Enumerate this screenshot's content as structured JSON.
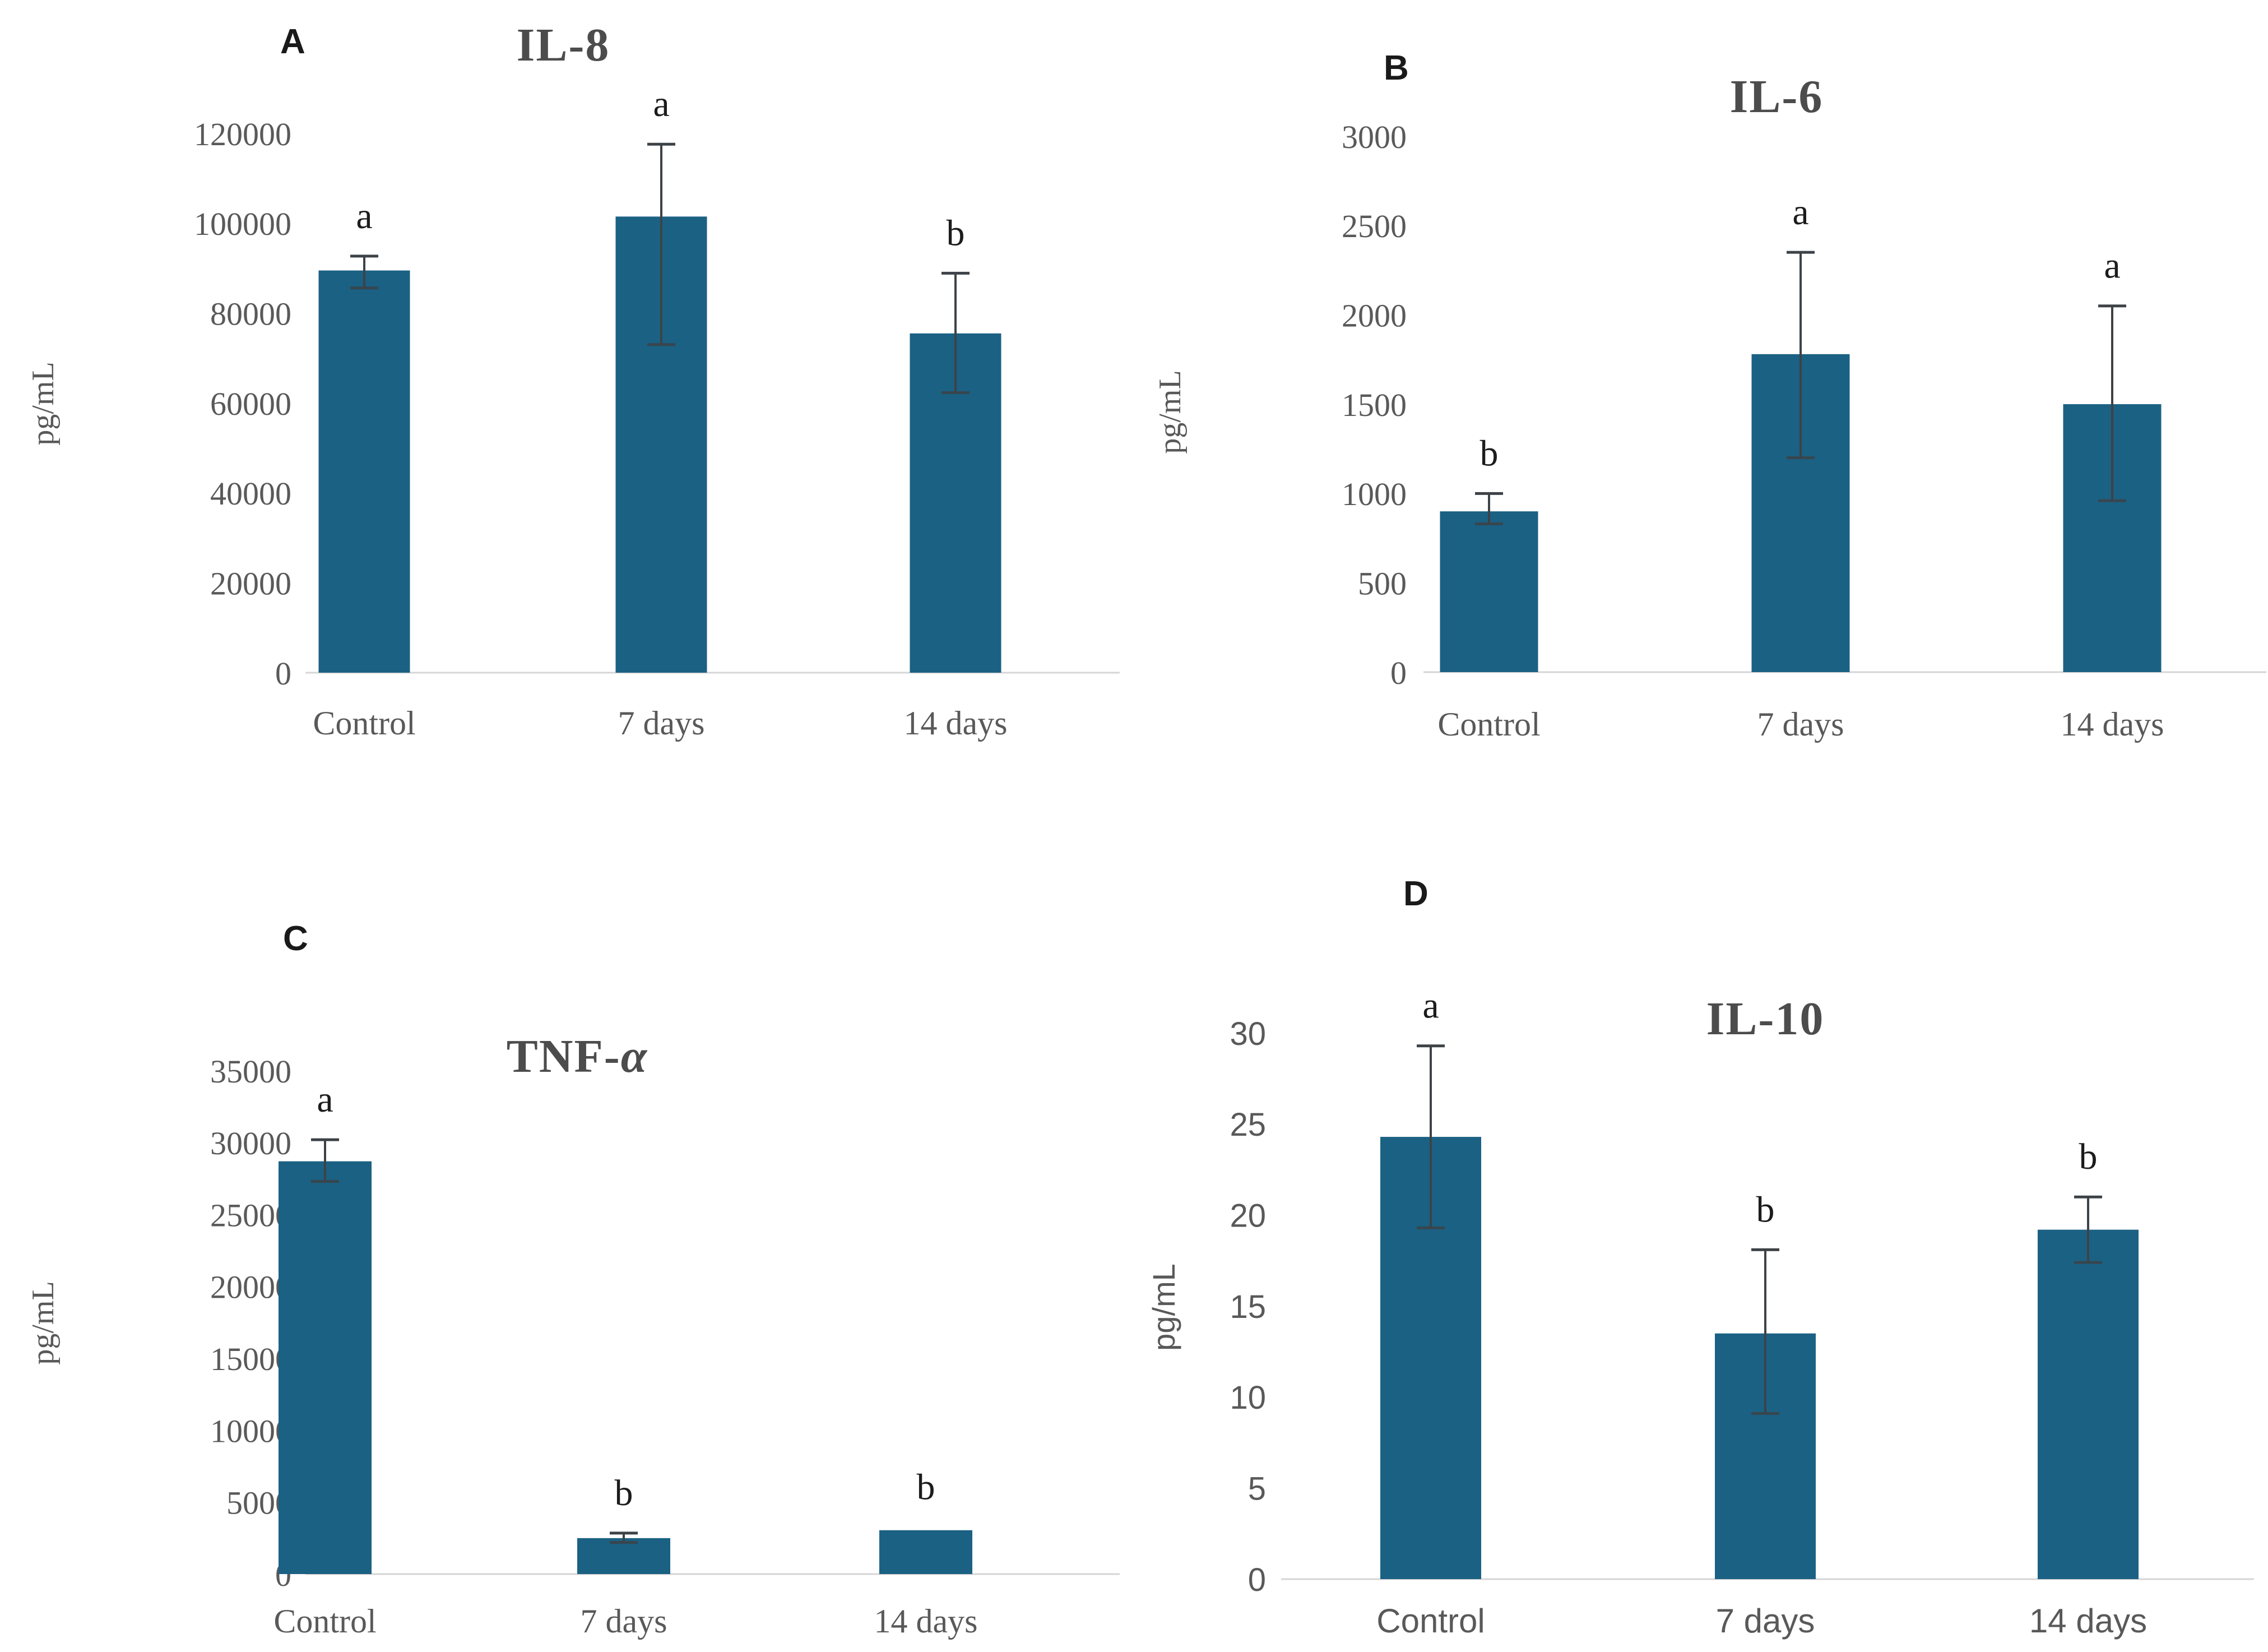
{
  "figure": {
    "background": "#ffffff",
    "unit_label": "pg/mL"
  },
  "colors": {
    "bar_fill": "#1B6183",
    "error_bar": "#3D4247",
    "axis_line": "#D6D6D6",
    "tick_text": "#595959",
    "category_text": "#595959",
    "title_text": "#4C4C4C",
    "sig_letter_text": "#1C1C1C",
    "panel_letter_text": "#1A1A1A"
  },
  "chart_data": [
    {
      "id": "A",
      "type": "bar",
      "panel_letter": "A",
      "title": "IL-8",
      "title_italic_suffix": "",
      "ylabel": "pg/mL",
      "categories": [
        "Control",
        "7 days",
        "14 days"
      ],
      "values": [
        89500,
        101500,
        75500
      ],
      "error_low": [
        85600,
        73000,
        62300
      ],
      "error_high": [
        92700,
        117600,
        88900
      ],
      "sig_letters": [
        "a",
        "a",
        "b"
      ],
      "ylim": [
        0,
        120000
      ],
      "ytick_step": 20000,
      "grid": false,
      "legend": false,
      "font_style": "serif"
    },
    {
      "id": "B",
      "type": "bar",
      "panel_letter": "B",
      "title": "IL-6",
      "title_italic_suffix": "",
      "ylabel": "pg/mL",
      "categories": [
        "Control",
        "7 days",
        "14 days"
      ],
      "values": [
        900,
        1780,
        1500
      ],
      "error_low": [
        830,
        1200,
        960
      ],
      "error_high": [
        1000,
        2350,
        2050
      ],
      "sig_letters": [
        "b",
        "a",
        "a"
      ],
      "ylim": [
        0,
        3000
      ],
      "ytick_step": 500,
      "grid": false,
      "legend": false,
      "font_style": "serif"
    },
    {
      "id": "C",
      "type": "bar",
      "panel_letter": "C",
      "title": "TNF-",
      "title_italic_suffix": "α",
      "ylabel": "pg/mL",
      "categories": [
        "Control",
        "7 days",
        "14 days"
      ],
      "values": [
        28700,
        2500,
        3050
      ],
      "error_low": [
        27300,
        2200,
        null
      ],
      "error_high": [
        30200,
        2850,
        null
      ],
      "sig_letters": [
        "a",
        "b",
        "b"
      ],
      "ylim": [
        0,
        35000
      ],
      "ytick_step": 5000,
      "grid": false,
      "legend": false,
      "font_style": "serif"
    },
    {
      "id": "D",
      "type": "bar",
      "panel_letter": "D",
      "title": "IL-10",
      "title_italic_suffix": "",
      "ylabel": "pg/mL",
      "categories": [
        "Control",
        "7 days",
        "14 days"
      ],
      "values": [
        24.3,
        13.5,
        19.2
      ],
      "error_low": [
        19.3,
        9.1,
        17.4
      ],
      "error_high": [
        29.3,
        18.1,
        21.0
      ],
      "sig_letters": [
        "a",
        "b",
        "b"
      ],
      "ylim": [
        0,
        30
      ],
      "ytick_step": 5,
      "grid": false,
      "legend": false,
      "font_style": "sans"
    }
  ]
}
